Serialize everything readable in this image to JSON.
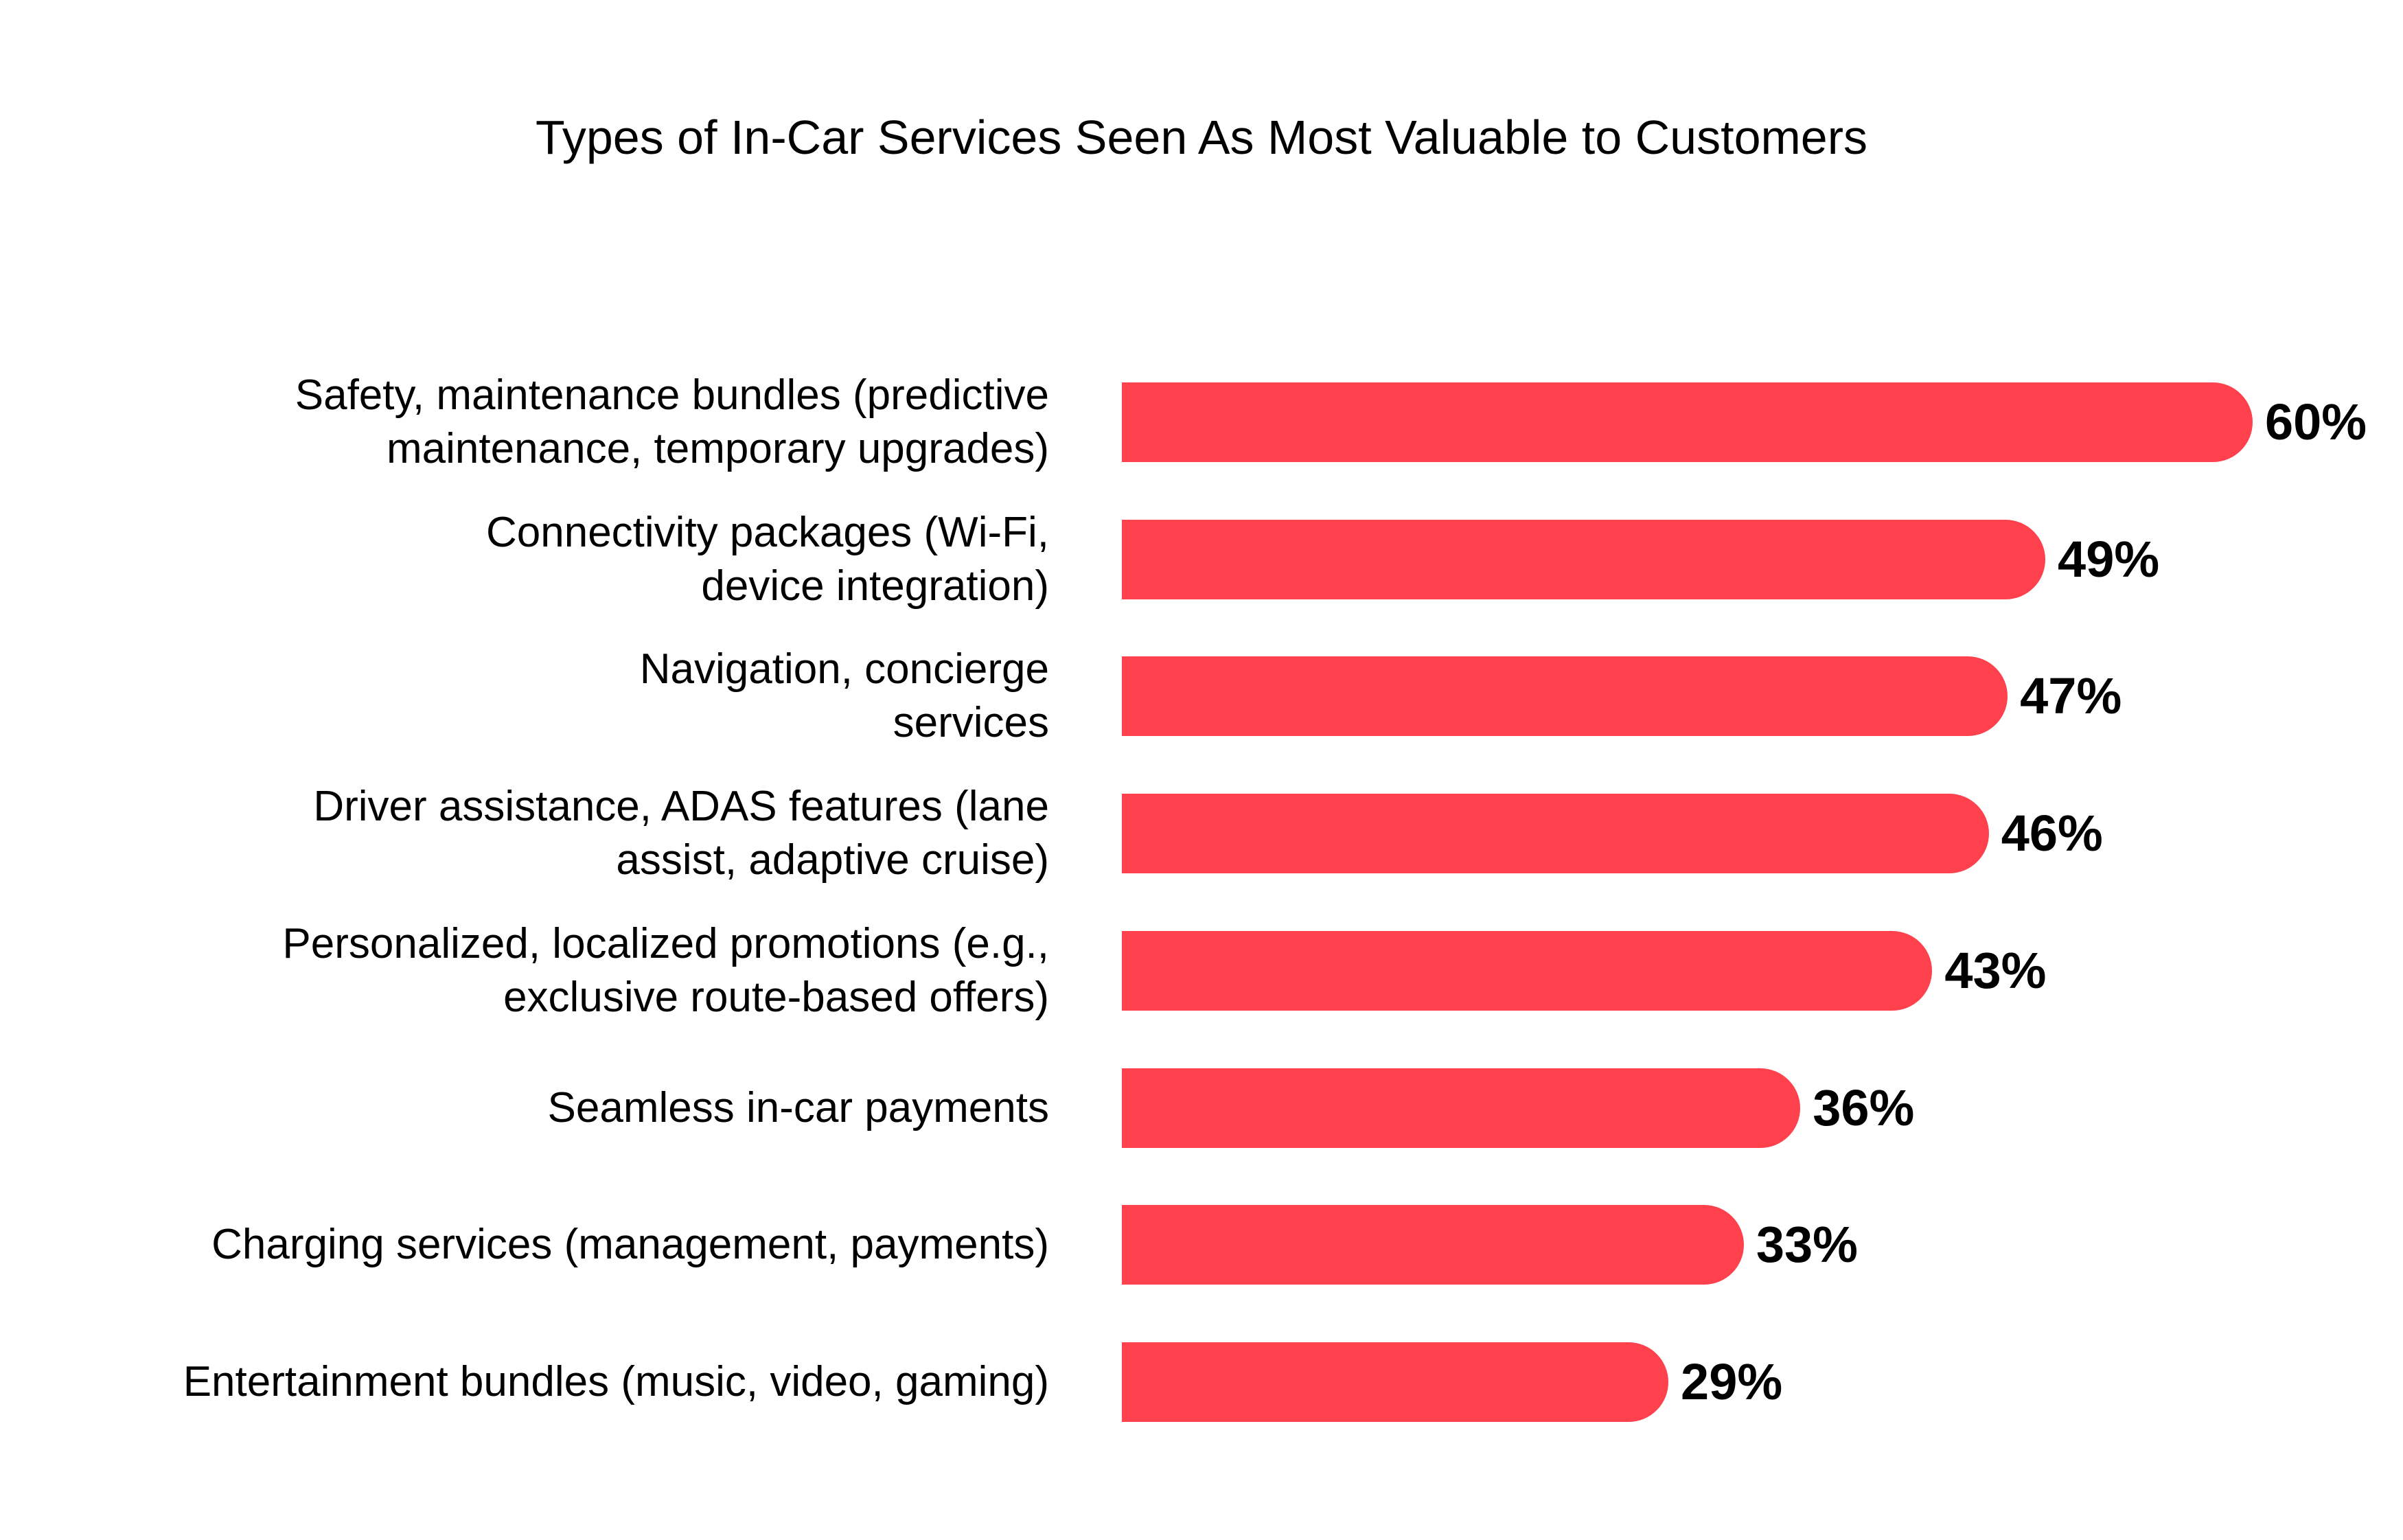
{
  "chart_data": {
    "type": "bar",
    "orientation": "horizontal",
    "title": "Types of In-Car Services Seen As Most Valuable to Customers",
    "categories": [
      "Safety, maintenance bundles (predictive maintenance, temporary upgrades)",
      "Connectivity packages (Wi-Fi, device integration)",
      "Navigation, concierge services",
      "Driver assistance, ADAS features (lane assist, adaptive cruise)",
      "Personalized, localized promotions (e.g., exclusive route-based offers)",
      "Seamless in-car payments",
      "Charging services (management, payments)",
      "Entertainment bundles (music, video, gaming)"
    ],
    "label_lines": [
      [
        "Safety, maintenance bundles (predictive",
        "maintenance, temporary upgrades)"
      ],
      [
        "Connectivity packages (Wi-Fi,",
        "device integration)"
      ],
      [
        "Navigation, concierge",
        "services"
      ],
      [
        "Driver assistance, ADAS features (lane",
        "assist, adaptive cruise)"
      ],
      [
        "Personalized, localized promotions (e.g.,",
        "exclusive route-based offers)"
      ],
      [
        "Seamless in-car payments"
      ],
      [
        "Charging services (management, payments)"
      ],
      [
        "Entertainment bundles (music, video, gaming)"
      ]
    ],
    "values": [
      60,
      49,
      47,
      46,
      43,
      36,
      33,
      29
    ],
    "value_labels": [
      "60%",
      "49%",
      "47%",
      "46%",
      "43%",
      "36%",
      "33%",
      "29%"
    ],
    "unit": "%",
    "grid": false,
    "legend": "none",
    "bar_color": "#FF414D"
  }
}
